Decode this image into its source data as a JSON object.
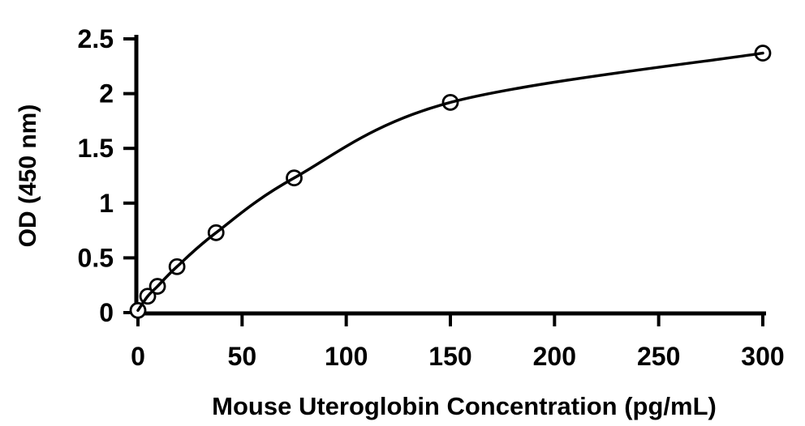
{
  "chart": {
    "background_color": "#ffffff",
    "line_color": "#000000",
    "marker_fill": "#ffffff",
    "marker_stroke": "#000000"
  },
  "chart_data": {
    "type": "scatter",
    "subtype": "standard-curve-with-fit-line",
    "title": "",
    "xlabel": "Mouse Uteroglobin Concentration (pg/mL)",
    "ylabel": "OD (450 nm)",
    "x": [
      0,
      4.69,
      9.38,
      18.75,
      37.5,
      75,
      150,
      300
    ],
    "y": [
      0.02,
      0.15,
      0.24,
      0.42,
      0.73,
      1.23,
      1.92,
      2.37
    ],
    "xlim": [
      0,
      300
    ],
    "ylim": [
      0,
      2.5
    ],
    "x_ticks": [
      {
        "value": 0,
        "label": "0"
      },
      {
        "value": 50,
        "label": "50"
      },
      {
        "value": 100,
        "label": "100"
      },
      {
        "value": 150,
        "label": "150"
      },
      {
        "value": 200,
        "label": "200"
      },
      {
        "value": 250,
        "label": "250"
      },
      {
        "value": 300,
        "label": "300"
      }
    ],
    "y_ticks": [
      {
        "value": 0,
        "label": "0"
      },
      {
        "value": 0.5,
        "label": "0.5"
      },
      {
        "value": 1,
        "label": "1"
      },
      {
        "value": 1.5,
        "label": "1.5"
      },
      {
        "value": 2,
        "label": "2"
      },
      {
        "value": 2.5,
        "label": "2.5"
      }
    ],
    "grid": false,
    "legend": "none",
    "marker_shape": "open-circle"
  }
}
